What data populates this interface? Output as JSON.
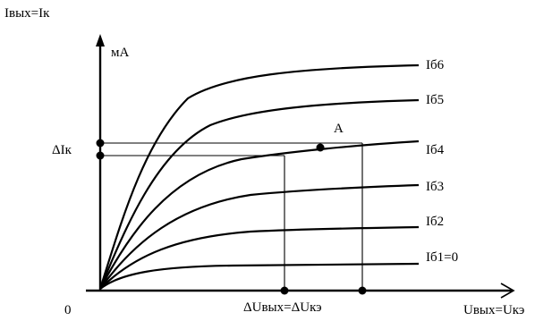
{
  "labels": {
    "y_axis": "Iвых=Iк",
    "unit": "мА",
    "origin": "0",
    "x_axis": "Uвых=Uкэ",
    "delta_i": "ΔIк",
    "delta_u": "ΔUвых=ΔUкэ",
    "point_a": "A"
  },
  "curves": [
    {
      "label": "Iб6"
    },
    {
      "label": "Iб5"
    },
    {
      "label": "Iб4"
    },
    {
      "label": "Iб3"
    },
    {
      "label": "Iб2"
    },
    {
      "label": "Iб1=0"
    }
  ]
}
